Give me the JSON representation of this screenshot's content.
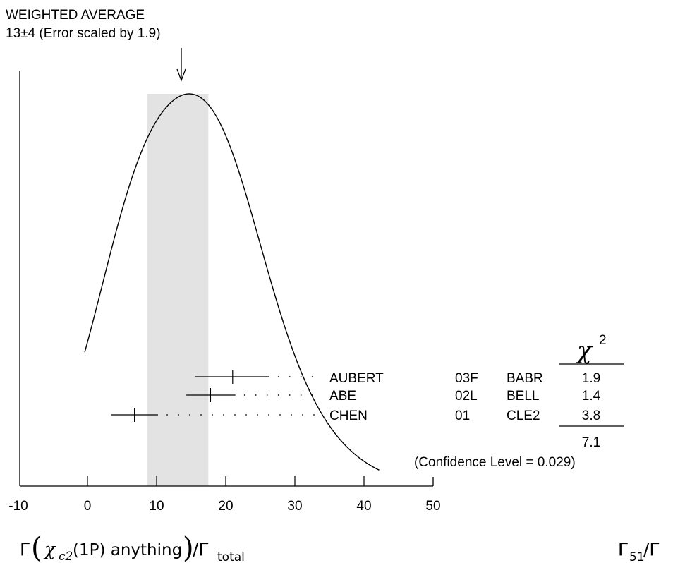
{
  "header": {
    "line1": "WEIGHTED AVERAGE",
    "line2": "13±4 (Error scaled by 1.9)"
  },
  "chart_data": {
    "type": "ideogram",
    "weighted_average": {
      "value": 13,
      "error": 4,
      "scale_factor": 1.9
    },
    "xlim": [
      -10,
      50
    ],
    "xticks": [
      -10,
      0,
      10,
      20,
      30,
      40,
      50
    ],
    "measurements": [
      {
        "author": "AUBERT",
        "year": "03F",
        "experiment": "BABR",
        "value": 21,
        "err_minus": 5.5,
        "err_plus": 5.3,
        "chi2": "1.9"
      },
      {
        "author": "ABE",
        "year": "02L",
        "experiment": "BELL",
        "value": 17.8,
        "err_minus": 3.5,
        "err_plus": 3.6,
        "chi2": "1.4"
      },
      {
        "author": "CHEN",
        "year": "01",
        "experiment": "CLE2",
        "value": 6.8,
        "err_minus": 3.4,
        "err_plus": 3.4,
        "chi2": "3.8"
      }
    ],
    "chi2_header": "χ",
    "chi2_exponent": "2",
    "chi2_total": "7.1",
    "confidence_level": "(Confidence Level = 0.029)"
  },
  "footer": {
    "quantity_gamma": "Γ",
    "quantity_chi": "χ",
    "quantity_chi_sub": "c2",
    "quantity_args": "(1P) anything",
    "quantity_div": "/Γ",
    "quantity_total": "total",
    "ratio_gamma": "Γ",
    "ratio_sub": "51",
    "ratio_div": "/Γ"
  }
}
